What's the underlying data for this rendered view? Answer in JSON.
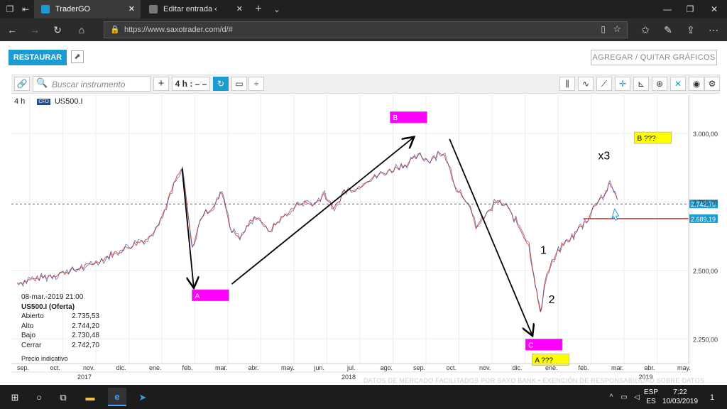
{
  "browser": {
    "tabs": [
      {
        "title": "TraderGO",
        "active": true
      },
      {
        "title": "Editar entrada ‹ PautasTerm",
        "active": false
      }
    ],
    "url": "https://www.saxotrader.com/d/#"
  },
  "app": {
    "restore_label": "RESTAURAR",
    "add_charts_label": "AGREGAR / QUITAR GRÁFICOS",
    "search_placeholder": "Buscar instrumento",
    "timeframe_label": "4 h : – –",
    "chart_period": "4 h",
    "symbol": "US500.I",
    "symbol_badge": "CFD"
  },
  "chart_data": {
    "type": "line",
    "y_ticks": [
      "3.000,00",
      "2.750,00",
      "2.500,00",
      "2.250,00"
    ],
    "y_tick_values": [
      3000,
      2750,
      2500,
      2250
    ],
    "ylim": [
      2160,
      3140
    ],
    "x_ticks": [
      "sep.",
      "oct.",
      "nov.",
      "dic.",
      "ene.",
      "feb.",
      "mar.",
      "abr.",
      "may.",
      "jun.",
      "jul.",
      "ago.",
      "sep.",
      "oct.",
      "nov.",
      "dic.",
      "ene.",
      "feb.",
      "mar.",
      "abr.",
      "may."
    ],
    "years": [
      {
        "label": "2017",
        "tick_index": 2
      },
      {
        "label": "2018",
        "tick_index": 10
      },
      {
        "label": "2019",
        "tick_index": 19
      }
    ],
    "price_points": [
      [
        0,
        2455
      ],
      [
        1,
        2480
      ],
      [
        2,
        2510
      ],
      [
        3,
        2565
      ],
      [
        4,
        2620
      ],
      [
        4.4,
        2700
      ],
      [
        4.8,
        2830
      ],
      [
        5.0,
        2872
      ],
      [
        5.3,
        2580
      ],
      [
        5.6,
        2700
      ],
      [
        6.0,
        2740
      ],
      [
        6.2,
        2790
      ],
      [
        6.5,
        2640
      ],
      [
        6.8,
        2620
      ],
      [
        7.0,
        2670
      ],
      [
        7.3,
        2700
      ],
      [
        7.6,
        2640
      ],
      [
        8.0,
        2690
      ],
      [
        8.3,
        2720
      ],
      [
        8.6,
        2750
      ],
      [
        9.0,
        2740
      ],
      [
        9.3,
        2780
      ],
      [
        9.6,
        2720
      ],
      [
        9.9,
        2790
      ],
      [
        10.3,
        2800
      ],
      [
        10.6,
        2830
      ],
      [
        11.0,
        2850
      ],
      [
        11.4,
        2870
      ],
      [
        11.8,
        2890
      ],
      [
        12.2,
        2920
      ],
      [
        12.5,
        2900
      ],
      [
        12.8,
        2935
      ],
      [
        13.0,
        2905
      ],
      [
        13.3,
        2800
      ],
      [
        13.6,
        2760
      ],
      [
        13.9,
        2660
      ],
      [
        14.2,
        2700
      ],
      [
        14.5,
        2750
      ],
      [
        14.8,
        2740
      ],
      [
        15.1,
        2680
      ],
      [
        15.3,
        2640
      ],
      [
        15.5,
        2590
      ],
      [
        15.7,
        2450
      ],
      [
        15.85,
        2340
      ],
      [
        16.0,
        2470
      ],
      [
        16.2,
        2530
      ],
      [
        16.5,
        2590
      ],
      [
        16.8,
        2620
      ],
      [
        17.0,
        2650
      ],
      [
        17.3,
        2690
      ],
      [
        17.5,
        2740
      ],
      [
        17.8,
        2780
      ],
      [
        17.95,
        2812
      ],
      [
        18.1,
        2790
      ],
      [
        18.2,
        2742.7
      ]
    ],
    "current_price": 2742.7,
    "current_price_label": "2.742,70",
    "level_price": 2689.19,
    "level_price_label": "2.689,19",
    "annotations": [
      {
        "text": "A",
        "type": "box",
        "color": "#ff00ff"
      },
      {
        "text": "B",
        "type": "box",
        "color": "#ff00ff"
      },
      {
        "text": "C",
        "type": "box",
        "color": "#ff00ff"
      },
      {
        "text": "B ???",
        "type": "box",
        "color": "#ffff00"
      },
      {
        "text": "A ???",
        "type": "box",
        "color": "#ffff00"
      },
      {
        "text": "x3",
        "type": "label"
      },
      {
        "text": "1",
        "type": "label"
      },
      {
        "text": "2",
        "type": "label"
      }
    ]
  },
  "info_panel": {
    "date": "08-mar.-2019 21:00",
    "title": "US500.I (Oferta)",
    "rows": [
      {
        "label": "Abierto",
        "value": "2.735,53"
      },
      {
        "label": "Alto",
        "value": "2.744,20"
      },
      {
        "label": "Bajo",
        "value": "2.730,48"
      },
      {
        "label": "Cerrar",
        "value": "2.742,70"
      }
    ],
    "footer": "Precio indicativo"
  },
  "watermark": "DATOS DE MERCADO FACILITADOS POR SAXO BANK • EXENCIÓN DE RESPONSABILIDAD SOBRE DATOS",
  "taskbar": {
    "lang_top": "ESP",
    "lang_bottom": "ES",
    "time": "7:22",
    "date": "10/03/2019",
    "notification_count": "1"
  }
}
